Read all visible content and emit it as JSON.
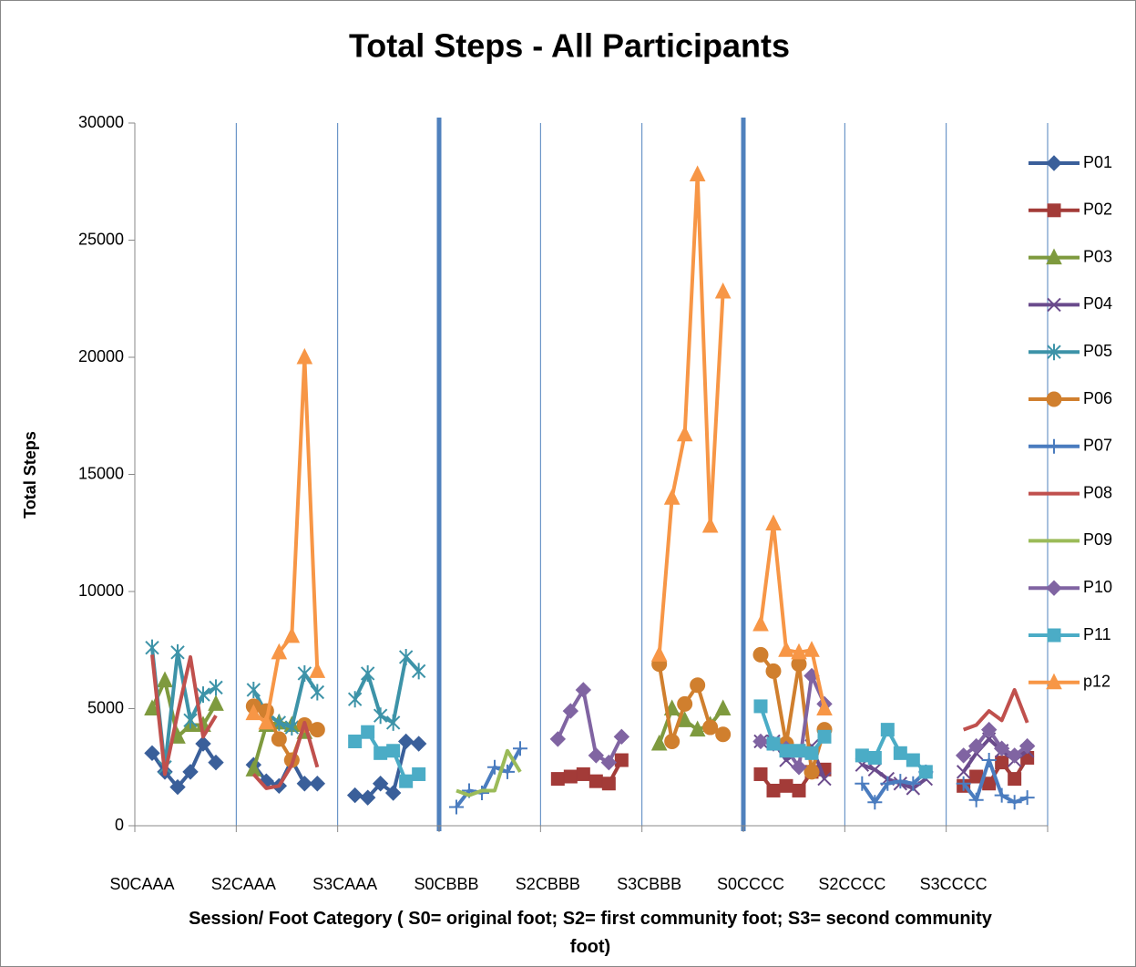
{
  "chart_data": {
    "type": "line",
    "title": "Total Steps - All Participants",
    "y_label": "Total Steps",
    "x_label": "Session/ Foot  Category ( S0= original foot; S2= first community foot; S3= second community foot)",
    "categories": [
      "S0CAAA",
      "S2CAAA",
      "S3CAAA",
      "S0CBBB",
      "S2CBBB",
      "S3CBBB",
      "S0CCCC",
      "S2CCCC",
      "S3CCCC"
    ],
    "ylim": [
      0,
      30000
    ],
    "yticks": [
      0,
      5000,
      10000,
      15000,
      20000,
      25000,
      30000
    ],
    "grid": true,
    "legend": "right",
    "series": [
      {
        "name": "P01",
        "color": "#3a5f9a",
        "marker": "diamond",
        "values": [
          [
            3100,
            2300,
            1650,
            2300,
            3500,
            2700
          ],
          [
            2600,
            1900,
            1700,
            2800,
            1800,
            1800
          ],
          [
            1300,
            1200,
            1800,
            1400,
            3600,
            3500
          ],
          null,
          null,
          null,
          null,
          null,
          null
        ]
      },
      {
        "name": "P02",
        "color": "#a33b38",
        "marker": "square",
        "values": [
          null,
          null,
          null,
          null,
          [
            2000,
            2100,
            2200,
            1900,
            1800,
            2800
          ],
          null,
          [
            2200,
            1500,
            1700,
            1500,
            2300,
            2400
          ],
          null,
          [
            1700,
            2100,
            1800,
            2700,
            2000,
            2900
          ]
        ]
      },
      {
        "name": "P03",
        "color": "#7e9a3e",
        "marker": "triangle",
        "values": [
          [
            5000,
            6200,
            3800,
            4300,
            4300,
            5200
          ],
          [
            2400,
            4300,
            4400,
            4300,
            4000,
            null
          ],
          null,
          null,
          null,
          [
            3500,
            5000,
            4500,
            4100,
            4300,
            5000
          ],
          null,
          null,
          null
        ]
      },
      {
        "name": "P04",
        "color": "#6a4b8c",
        "marker": "x",
        "values": [
          null,
          null,
          null,
          null,
          null,
          null,
          [
            3600,
            3600,
            2800,
            3200,
            3400,
            2000
          ],
          [
            2600,
            2400,
            2000,
            1800,
            1600,
            2000
          ],
          [
            2300,
            3100,
            3700,
            3200,
            2800,
            3200
          ]
        ]
      },
      {
        "name": "P05",
        "color": "#3d93a8",
        "marker": "asterisk",
        "values": [
          [
            7600,
            2500,
            7400,
            4500,
            5600,
            5900
          ],
          [
            5800,
            4800,
            4400,
            4200,
            6500,
            5700
          ],
          [
            5400,
            6500,
            4700,
            4400,
            7200,
            6600
          ],
          null,
          null,
          null,
          null,
          null,
          null
        ]
      },
      {
        "name": "P06",
        "color": "#d07f2e",
        "marker": "circle",
        "values": [
          null,
          [
            5100,
            4900,
            3700,
            2800,
            4300,
            4100
          ],
          null,
          null,
          null,
          [
            6900,
            3600,
            5200,
            6000,
            4200,
            3900
          ],
          [
            7300,
            6600,
            3500,
            6900,
            2300,
            4100
          ],
          null,
          null
        ]
      },
      {
        "name": "P07",
        "color": "#4a7cbf",
        "marker": "plus",
        "values": [
          null,
          null,
          null,
          [
            800,
            1500,
            1400,
            2500,
            2300,
            3300
          ],
          null,
          null,
          null,
          [
            1800,
            1000,
            1800,
            1900,
            1800,
            2300
          ],
          [
            1800,
            1100,
            2800,
            1300,
            1000,
            1200
          ]
        ]
      },
      {
        "name": "P08",
        "color": "#c0504d",
        "marker": "none",
        "values": [
          [
            7300,
            2200,
            4800,
            7200,
            3800,
            4700
          ],
          [
            2200,
            1600,
            1700,
            2600,
            4400,
            2500
          ],
          null,
          null,
          null,
          null,
          null,
          null,
          [
            4100,
            4300,
            4900,
            4500,
            5800,
            4400
          ]
        ]
      },
      {
        "name": "P09",
        "color": "#9bbb59",
        "marker": "none",
        "values": [
          null,
          null,
          null,
          [
            1500,
            1300,
            1500,
            1500,
            3200,
            2300
          ],
          null,
          null,
          null,
          null,
          null
        ]
      },
      {
        "name": "P10",
        "color": "#8064a2",
        "marker": "diamond",
        "values": [
          null,
          null,
          null,
          null,
          [
            3700,
            4900,
            5800,
            3000,
            2700,
            3800
          ],
          null,
          [
            3600,
            3500,
            3300,
            2500,
            6400,
            5200
          ],
          null,
          [
            3000,
            3400,
            4100,
            3300,
            3000,
            3400
          ]
        ]
      },
      {
        "name": "P11",
        "color": "#4bacc6",
        "marker": "square",
        "values": [
          null,
          null,
          [
            3600,
            4000,
            3100,
            3200,
            1900,
            2200
          ],
          null,
          null,
          null,
          [
            5100,
            3500,
            3200,
            3200,
            3100,
            3800
          ],
          [
            3000,
            2900,
            4100,
            3100,
            2800,
            2300
          ],
          null
        ]
      },
      {
        "name": "p12",
        "color": "#f79646",
        "marker": "triangle",
        "values": [
          null,
          [
            4800,
            4400,
            7400,
            8100,
            20000,
            6600
          ],
          null,
          null,
          null,
          [
            7300,
            14000,
            16700,
            27800,
            12800,
            22800
          ],
          [
            8600,
            12900,
            7500,
            7400,
            7500,
            5000
          ],
          null,
          null
        ]
      }
    ]
  }
}
